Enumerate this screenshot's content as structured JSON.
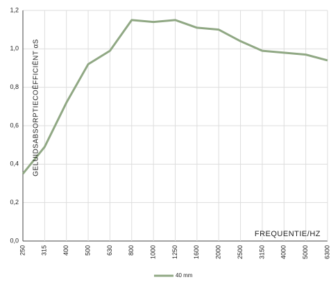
{
  "chart_data": {
    "type": "line",
    "categories": [
      "250",
      "315",
      "400",
      "500",
      "630",
      "800",
      "1000",
      "1250",
      "1600",
      "2000",
      "2500",
      "3150",
      "4000",
      "5000",
      "6300"
    ],
    "series": [
      {
        "name": "40 mm",
        "color": "#90a884",
        "values": [
          0.35,
          0.49,
          0.72,
          0.92,
          0.99,
          1.15,
          1.14,
          1.15,
          1.11,
          1.1,
          1.04,
          0.99,
          0.98,
          0.97,
          0.94
        ]
      }
    ],
    "ylabel": "GELUIDSABSORPTIECOËFFICIËNT αS",
    "xlabel": "FREQUENTIE/HZ",
    "ylim": [
      0,
      1.2
    ],
    "yticks": [
      {
        "value": 0,
        "label": "0,0"
      },
      {
        "value": 0.2,
        "label": "0,2"
      },
      {
        "value": 0.4,
        "label": "0,4"
      },
      {
        "value": 0.6,
        "label": "0,6"
      },
      {
        "value": 0.8,
        "label": "0,8"
      },
      {
        "value": 1.0,
        "label": "1,0"
      },
      {
        "value": 1.2,
        "label": "1,2"
      }
    ],
    "grid": true
  }
}
